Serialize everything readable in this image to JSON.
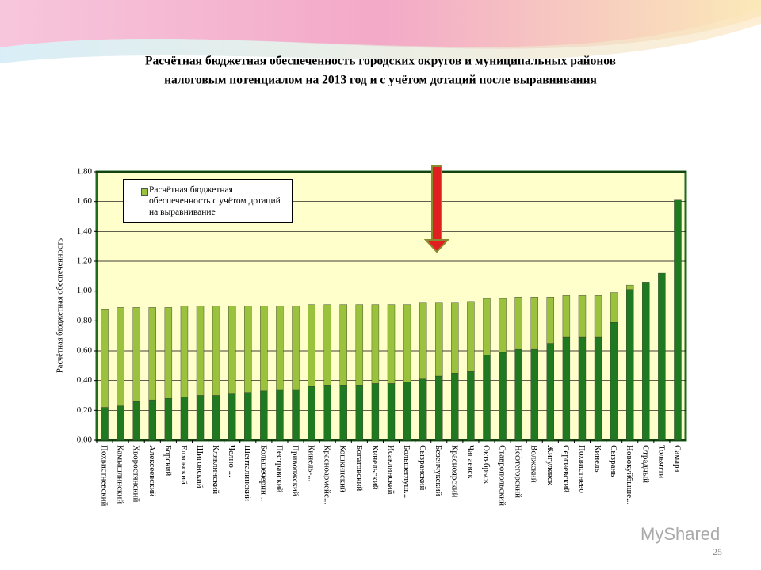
{
  "chart_data": {
    "type": "stacked_bar",
    "title": [
      "Расчётная бюджетная обеспеченность городских округов и муниципальных районов",
      "налоговым потенциалом на 2013 год и с учётом дотаций  после выравнивания"
    ],
    "y_label": "Расчётная бюджетная обеспеченность",
    "categories": [
      "Похвистневский",
      "Камышлинский",
      "Хворостянский",
      "Алексеевский",
      "Борский",
      "Елховский",
      "Шигонский",
      "Клявлинский",
      "Челно-...",
      "Шенталинский",
      "Большечерни...",
      "Пестравский",
      "Приволжский",
      "Кинель-...",
      "Красноармейс...",
      "Кошкинский",
      "Богатовский",
      "Кинельский",
      "Исаклинский",
      "Большеглуш...",
      "Сызранский",
      "Безенчукский",
      "Красноярский",
      "Чапаевск",
      "Октябрьск",
      "Ставропольский",
      "Нефтегорский",
      "Волжский",
      "Жигулёвск",
      "Сергиевский",
      "Похвистнево",
      "Кинель",
      "Сызрань",
      "Новокуйбыше...",
      "Отрадный",
      "Тольятти",
      "Самара"
    ],
    "series": [
      {
        "color": "#1f7a1f",
        "values": [
          0.22,
          0.23,
          0.26,
          0.27,
          0.28,
          0.29,
          0.3,
          0.3,
          0.31,
          0.32,
          0.33,
          0.34,
          0.34,
          0.36,
          0.37,
          0.37,
          0.37,
          0.38,
          0.38,
          0.39,
          0.41,
          0.43,
          0.45,
          0.46,
          0.57,
          0.59,
          0.61,
          0.61,
          0.65,
          0.69,
          0.69,
          0.69,
          0.79,
          1.01,
          1.06,
          1.12,
          1.61
        ]
      },
      {
        "name": "Расчётная бюджетная обеспеченность с учётом дотаций на выравнивание",
        "color": "#9bc23c",
        "values": [
          0.66,
          0.66,
          0.63,
          0.62,
          0.61,
          0.61,
          0.6,
          0.6,
          0.59,
          0.58,
          0.57,
          0.56,
          0.56,
          0.55,
          0.54,
          0.54,
          0.54,
          0.53,
          0.53,
          0.52,
          0.51,
          0.49,
          0.47,
          0.47,
          0.38,
          0.36,
          0.35,
          0.35,
          0.31,
          0.28,
          0.28,
          0.28,
          0.2,
          0.03,
          0,
          0,
          0
        ]
      }
    ],
    "ylim": [
      0,
      1.8
    ],
    "yticks": [
      {
        "value": 0,
        "label": "0,00"
      },
      {
        "value": 0.2,
        "label": "0,20"
      },
      {
        "value": 0.4,
        "label": "0,40"
      },
      {
        "value": 0.6,
        "label": "0,60"
      },
      {
        "value": 0.8,
        "label": "0,80"
      },
      {
        "value": 1.0,
        "label": "1,00"
      },
      {
        "value": 1.2,
        "label": "1,20"
      },
      {
        "value": 1.4,
        "label": "1,40"
      },
      {
        "value": 1.6,
        "label": "1,60"
      },
      {
        "value": 1.8,
        "label": "1,80"
      }
    ],
    "grid": true,
    "legend": "upper left",
    "page_number": "25",
    "watermark": "MyShared"
  }
}
